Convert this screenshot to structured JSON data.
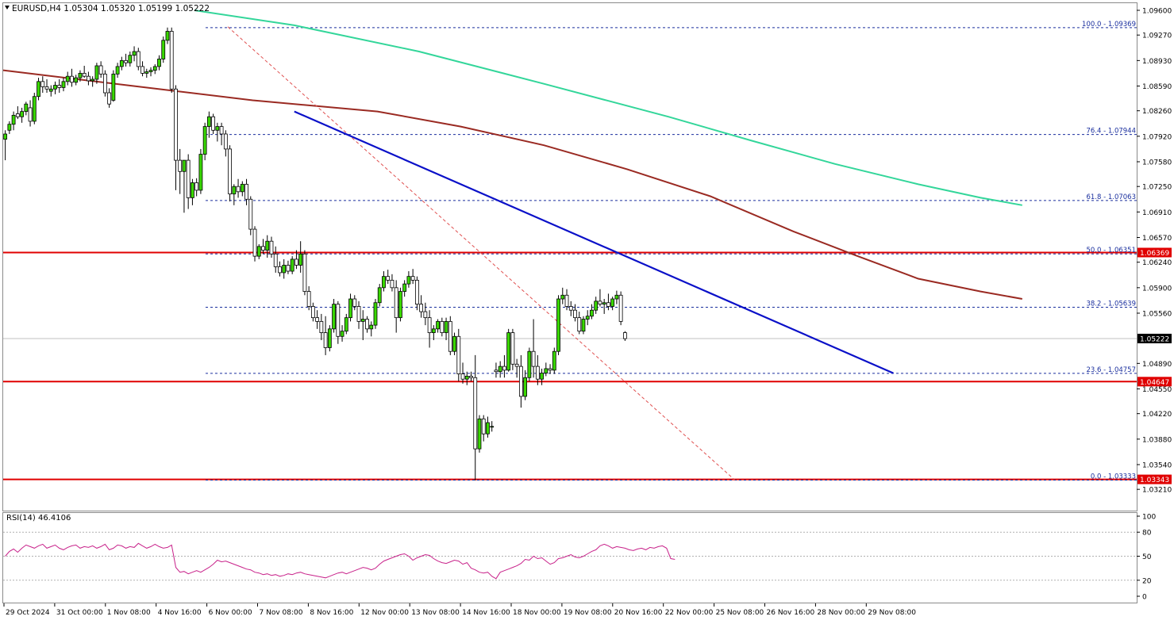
{
  "chart_data": {
    "type": "candlestick",
    "symbol": "EURUSD",
    "timeframe": "H4",
    "header_text": "EURUSD,H4  1.05304 1.05320 1.05199 1.05222",
    "ohlc": {
      "open": "1.05304",
      "high": "1.05320",
      "low": "1.05199",
      "close": "1.05222"
    },
    "price_axis_ticks": [
      "1.09600",
      "1.09270",
      "1.08930",
      "1.08590",
      "1.08260",
      "1.07920",
      "1.07580",
      "1.07250",
      "1.06910",
      "1.06570",
      "1.06240",
      "1.05900",
      "1.05560",
      "1.04890",
      "1.04550",
      "1.04220",
      "1.03880",
      "1.03540",
      "1.03210"
    ],
    "ylim": [
      1.0321,
      1.096
    ],
    "time_axis_labels": [
      "29 Oct 2024",
      "31 Oct 00:00",
      "1 Nov 08:00",
      "4 Nov 16:00",
      "6 Nov 00:00",
      "7 Nov 08:00",
      "8 Nov 16:00",
      "12 Nov 00:00",
      "13 Nov 08:00",
      "14 Nov 16:00",
      "18 Nov 00:00",
      "19 Nov 08:00",
      "20 Nov 16:00",
      "22 Nov 00:00",
      "25 Nov 08:00",
      "26 Nov 16:00",
      "28 Nov 00:00",
      "29 Nov 08:00"
    ],
    "current_price": {
      "value": 1.05222,
      "label": "1.05222"
    },
    "horizontal_levels": [
      {
        "value": 1.06369,
        "label": "1.06369",
        "color": "#e00000"
      },
      {
        "value": 1.04647,
        "label": "1.04647",
        "color": "#e00000"
      },
      {
        "value": 1.03343,
        "label": "1.03343",
        "color": "#e00000"
      }
    ],
    "fibonacci": {
      "color": "#1a2f9e",
      "levels": [
        {
          "value": 1.09369,
          "label": "100.0 - 1.09369"
        },
        {
          "value": 1.07944,
          "label": "76.4 - 1.07944"
        },
        {
          "value": 1.07063,
          "label": "61.8 - 1.07063"
        },
        {
          "value": 1.06351,
          "label": "50.0 - 1.06351"
        },
        {
          "value": 1.05639,
          "label": "38.2 - 1.05639"
        },
        {
          "value": 1.04757,
          "label": "23.6 - 1.04757"
        },
        {
          "value": 1.03333,
          "label": "0.0 - 1.03333"
        }
      ]
    },
    "trendline": {
      "color": "#0a10c8",
      "from": {
        "bar": 70,
        "price": 1.0825
      },
      "to": {
        "bar": 214,
        "price": 1.0476
      }
    },
    "fib_swing": {
      "color": "#e05050",
      "from": {
        "bar": 54,
        "price": 1.0938
      },
      "to": {
        "bar": 176,
        "price": 1.0333
      }
    },
    "moving_averages": [
      {
        "color": "#9a2a22",
        "points": [
          [
            0,
            1.088
          ],
          [
            30,
            1.086
          ],
          [
            60,
            1.084
          ],
          [
            90,
            1.0825
          ],
          [
            110,
            1.0805
          ],
          [
            130,
            1.078
          ],
          [
            150,
            1.0748
          ],
          [
            170,
            1.0712
          ],
          [
            190,
            1.0665
          ],
          [
            205,
            1.0633
          ],
          [
            220,
            1.0602
          ],
          [
            235,
            1.0585
          ],
          [
            245,
            1.0575
          ]
        ]
      },
      {
        "color": "#33d69a",
        "points": [
          [
            46,
            1.096
          ],
          [
            70,
            1.094
          ],
          [
            100,
            1.0905
          ],
          [
            130,
            1.0862
          ],
          [
            160,
            1.0818
          ],
          [
            180,
            1.0786
          ],
          [
            200,
            1.0755
          ],
          [
            220,
            1.0728
          ],
          [
            235,
            1.071
          ],
          [
            245,
            1.07
          ]
        ]
      }
    ],
    "candles": [
      [
        1.0788,
        1.08,
        1.076,
        1.0795
      ],
      [
        1.08,
        1.0812,
        1.0795,
        1.0808
      ],
      [
        1.0808,
        1.0825,
        1.08,
        1.082
      ],
      [
        1.0822,
        1.0832,
        1.0815,
        1.0818
      ],
      [
        1.0818,
        1.083,
        1.081,
        1.0825
      ],
      [
        1.0825,
        1.0838,
        1.082,
        1.0835
      ],
      [
        1.083,
        1.084,
        1.0805,
        1.0812
      ],
      [
        1.0812,
        1.085,
        1.0808,
        1.0845
      ],
      [
        1.0845,
        1.087,
        1.084,
        1.0865
      ],
      [
        1.0865,
        1.0872,
        1.085,
        1.0858
      ],
      [
        1.0858,
        1.0868,
        1.085,
        1.0855
      ],
      [
        1.0852,
        1.086,
        1.0845,
        1.0855
      ],
      [
        1.0855,
        1.0865,
        1.0848,
        1.086
      ],
      [
        1.086,
        1.0868,
        1.085,
        1.0857
      ],
      [
        1.0857,
        1.087,
        1.0852,
        1.0865
      ],
      [
        1.0865,
        1.0878,
        1.086,
        1.0872
      ],
      [
        1.0872,
        1.0882,
        1.0858,
        1.0864
      ],
      [
        1.0864,
        1.0874,
        1.086,
        1.087
      ],
      [
        1.087,
        1.088,
        1.0865,
        1.0876
      ],
      [
        1.0876,
        1.0886,
        1.087,
        1.0872
      ],
      [
        1.0872,
        1.0878,
        1.086,
        1.0866
      ],
      [
        1.0866,
        1.0872,
        1.0858,
        1.0868
      ],
      [
        1.0868,
        1.089,
        1.0862,
        1.0886
      ],
      [
        1.0886,
        1.0892,
        1.087,
        1.0875
      ],
      [
        1.0875,
        1.088,
        1.0845,
        1.085
      ],
      [
        1.085,
        1.0856,
        1.083,
        1.0835
      ],
      [
        1.084,
        1.088,
        1.0838,
        1.0875
      ],
      [
        1.0875,
        1.089,
        1.087,
        1.0885
      ],
      [
        1.0885,
        1.0898,
        1.088,
        1.0893
      ],
      [
        1.0893,
        1.0902,
        1.0885,
        1.089
      ],
      [
        1.089,
        1.0905,
        1.0885,
        1.09
      ],
      [
        1.09,
        1.0912,
        1.0892,
        1.0905
      ],
      [
        1.0905,
        1.091,
        1.088,
        1.0885
      ],
      [
        1.0885,
        1.0892,
        1.0872,
        1.0876
      ],
      [
        1.0876,
        1.0882,
        1.087,
        1.0878
      ],
      [
        1.0878,
        1.0884,
        1.0872,
        1.088
      ],
      [
        1.088,
        1.0888,
        1.0875,
        1.0885
      ],
      [
        1.0885,
        1.09,
        1.088,
        1.0895
      ],
      [
        1.0895,
        1.0925,
        1.089,
        1.092
      ],
      [
        1.092,
        1.0937,
        1.0915,
        1.0932
      ],
      [
        1.0932,
        1.0937,
        1.085,
        1.0855
      ],
      [
        1.0855,
        1.086,
        1.072,
        1.076
      ],
      [
        1.076,
        1.0775,
        1.0715,
        1.0745
      ],
      [
        1.0745,
        1.076,
        1.069,
        1.076
      ],
      [
        1.076,
        1.0768,
        1.0695,
        1.071
      ],
      [
        1.071,
        1.0735,
        1.07,
        1.073
      ],
      [
        1.073,
        1.0736,
        1.0712,
        1.072
      ],
      [
        1.072,
        1.0775,
        1.0715,
        1.0768
      ],
      [
        1.0768,
        1.081,
        1.076,
        1.0805
      ],
      [
        1.0805,
        1.0825,
        1.079,
        1.0818
      ],
      [
        1.0818,
        1.0822,
        1.0795,
        1.08
      ],
      [
        1.08,
        1.081,
        1.0785,
        1.0805
      ],
      [
        1.0805,
        1.081,
        1.078,
        1.0795
      ],
      [
        1.0795,
        1.08,
        1.0765,
        1.0775
      ],
      [
        1.0775,
        1.078,
        1.0705,
        1.0715
      ],
      [
        1.0715,
        1.0728,
        1.07,
        1.0725
      ],
      [
        1.0725,
        1.0735,
        1.071,
        1.0718
      ],
      [
        1.0718,
        1.0732,
        1.0712,
        1.0728
      ],
      [
        1.0728,
        1.0735,
        1.07,
        1.0708
      ],
      [
        1.0708,
        1.0712,
        1.066,
        1.0668
      ],
      [
        1.0668,
        1.0672,
        1.0625,
        1.0632
      ],
      [
        1.0632,
        1.0648,
        1.0628,
        1.0645
      ],
      [
        1.0645,
        1.0655,
        1.0635,
        1.064
      ],
      [
        1.064,
        1.066,
        1.063,
        1.0652
      ],
      [
        1.0652,
        1.0658,
        1.063,
        1.0635
      ],
      [
        1.0635,
        1.0645,
        1.061,
        1.0618
      ],
      [
        1.0618,
        1.0625,
        1.0605,
        1.061
      ],
      [
        1.061,
        1.0628,
        1.0602,
        1.062
      ],
      [
        1.062,
        1.0626,
        1.0608,
        1.0612
      ],
      [
        1.0612,
        1.0632,
        1.0608,
        1.0628
      ],
      [
        1.0628,
        1.064,
        1.0615,
        1.062
      ],
      [
        1.062,
        1.0652,
        1.061,
        1.0635
      ],
      [
        1.0635,
        1.064,
        1.058,
        1.0585
      ],
      [
        1.0585,
        1.0592,
        1.056,
        1.0565
      ],
      [
        1.0565,
        1.057,
        1.0545,
        1.055
      ],
      [
        1.055,
        1.056,
        1.0535,
        1.0545
      ],
      [
        1.0545,
        1.0555,
        1.052,
        1.053
      ],
      [
        1.053,
        1.0552,
        1.05,
        1.051
      ],
      [
        1.051,
        1.054,
        1.0505,
        1.0535
      ],
      [
        1.0535,
        1.0575,
        1.053,
        1.0568
      ],
      [
        1.0568,
        1.0572,
        1.0515,
        1.0525
      ],
      [
        1.0525,
        1.054,
        1.0518,
        1.0532
      ],
      [
        1.0532,
        1.0555,
        1.0528,
        1.055
      ],
      [
        1.055,
        1.0582,
        1.0545,
        1.0575
      ],
      [
        1.0575,
        1.058,
        1.056,
        1.0565
      ],
      [
        1.0565,
        1.0572,
        1.0535,
        1.0545
      ],
      [
        1.0545,
        1.056,
        1.052,
        1.0548
      ],
      [
        1.0548,
        1.0552,
        1.053,
        1.0535
      ],
      [
        1.0535,
        1.0545,
        1.0525,
        1.054
      ],
      [
        1.054,
        1.0575,
        1.0535,
        1.057
      ],
      [
        1.057,
        1.0595,
        1.0565,
        1.059
      ],
      [
        1.059,
        1.0612,
        1.0585,
        1.0605
      ],
      [
        1.0605,
        1.0614,
        1.0595,
        1.06
      ],
      [
        1.06,
        1.0608,
        1.0585,
        1.059
      ],
      [
        1.059,
        1.06,
        1.053,
        1.055
      ],
      [
        1.055,
        1.059,
        1.0545,
        1.0585
      ],
      [
        1.0585,
        1.06,
        1.0578,
        1.0595
      ],
      [
        1.0595,
        1.0612,
        1.059,
        1.0605
      ],
      [
        1.0605,
        1.0615,
        1.0595,
        1.06
      ],
      [
        1.06,
        1.0605,
        1.056,
        1.0568
      ],
      [
        1.0568,
        1.058,
        1.055,
        1.0558
      ],
      [
        1.0558,
        1.057,
        1.054,
        1.055
      ],
      [
        1.055,
        1.056,
        1.051,
        1.053
      ],
      [
        1.053,
        1.054,
        1.052,
        1.0535
      ],
      [
        1.0535,
        1.0548,
        1.053,
        1.0545
      ],
      [
        1.0545,
        1.055,
        1.0525,
        1.053
      ],
      [
        1.053,
        1.055,
        1.052,
        1.0545
      ],
      [
        1.0545,
        1.0552,
        1.05,
        1.0505
      ],
      [
        1.0505,
        1.053,
        1.05,
        1.0525
      ],
      [
        1.0525,
        1.0535,
        1.0465,
        1.0475
      ],
      [
        1.0475,
        1.049,
        1.0462,
        1.0468
      ],
      [
        1.0468,
        1.0478,
        1.046,
        1.0472
      ],
      [
        1.0472,
        1.0478,
        1.0465,
        1.047
      ],
      [
        1.047,
        1.05,
        1.0333,
        1.0375
      ],
      [
        1.0375,
        1.042,
        1.037,
        1.0415
      ],
      [
        1.0415,
        1.042,
        1.0385,
        1.0395
      ],
      [
        1.0395,
        1.0418,
        1.039,
        1.041
      ],
      [
        1.0405,
        1.0412,
        1.0398,
        1.0405
      ],
      [
        1.048,
        1.049,
        1.047,
        1.0478
      ],
      [
        1.0478,
        1.0492,
        1.047,
        1.0485
      ],
      [
        1.0485,
        1.05,
        1.047,
        1.048
      ],
      [
        1.048,
        1.0535,
        1.0478,
        1.053
      ],
      [
        1.053,
        1.0535,
        1.048,
        1.0488
      ],
      [
        1.0488,
        1.0495,
        1.047,
        1.0485
      ],
      [
        1.0485,
        1.05,
        1.043,
        1.0445
      ],
      [
        1.0445,
        1.048,
        1.044,
        1.047
      ],
      [
        1.047,
        1.051,
        1.0465,
        1.0505
      ],
      [
        1.0505,
        1.0548,
        1.047,
        1.0485
      ],
      [
        1.0485,
        1.05,
        1.046,
        1.0468
      ],
      [
        1.0468,
        1.0482,
        1.046,
        1.0476
      ],
      [
        1.0476,
        1.049,
        1.0472,
        1.0482
      ],
      [
        1.0482,
        1.0488,
        1.0475,
        1.048
      ],
      [
        1.048,
        1.051,
        1.0475,
        1.0505
      ],
      [
        1.0505,
        1.058,
        1.05,
        1.0575
      ],
      [
        1.0575,
        1.059,
        1.0568,
        1.058
      ],
      [
        1.058,
        1.0588,
        1.056,
        1.0565
      ],
      [
        1.0565,
        1.0572,
        1.0552,
        1.056
      ],
      [
        1.056,
        1.0568,
        1.0545,
        1.055
      ],
      [
        1.055,
        1.0558,
        1.0528,
        1.0532
      ],
      [
        1.0532,
        1.0552,
        1.0528,
        1.0548
      ],
      [
        1.0548,
        1.056,
        1.054,
        1.0552
      ],
      [
        1.0552,
        1.0568,
        1.0548,
        1.056
      ],
      [
        1.056,
        1.0578,
        1.0555,
        1.0572
      ],
      [
        1.0572,
        1.0588,
        1.0565,
        1.0568
      ],
      [
        1.0568,
        1.0575,
        1.0555,
        1.057
      ],
      [
        1.057,
        1.0582,
        1.056,
        1.0565
      ],
      [
        1.0565,
        1.0578,
        1.056,
        1.0575
      ],
      [
        1.0575,
        1.0586,
        1.0568,
        1.058
      ],
      [
        1.058,
        1.0585,
        1.054,
        1.0545
      ],
      [
        1.053,
        1.0532,
        1.0519,
        1.0522
      ]
    ],
    "indicator": {
      "name": "RSI(14)",
      "label": "RSI(14) 46.4106",
      "value": 46.4106,
      "color": "#c8228a",
      "levels": [
        "100",
        "80",
        "50",
        "20",
        "0"
      ],
      "level_values": [
        100,
        80,
        50,
        20,
        0
      ],
      "dotted_levels": [
        80,
        50,
        20
      ],
      "series": [
        50,
        56,
        59,
        55,
        60,
        64,
        62,
        60,
        63,
        65,
        60,
        62,
        64,
        60,
        58,
        61,
        63,
        64,
        60,
        62,
        61,
        63,
        60,
        62,
        65,
        58,
        60,
        64,
        63,
        60,
        62,
        61,
        66,
        63,
        60,
        62,
        65,
        62,
        60,
        61,
        64,
        36,
        30,
        31,
        28,
        30,
        32,
        30,
        33,
        36,
        40,
        45,
        43,
        44,
        42,
        40,
        38,
        36,
        34,
        33,
        30,
        29,
        27,
        28,
        26,
        27,
        25,
        26,
        28,
        27,
        29,
        30,
        28,
        27,
        26,
        25,
        24,
        23,
        25,
        27,
        29,
        30,
        28,
        30,
        32,
        34,
        36,
        35,
        33,
        35,
        40,
        44,
        46,
        48,
        50,
        52,
        53,
        50,
        45,
        48,
        50,
        52,
        51,
        47,
        44,
        42,
        41,
        43,
        45,
        44,
        40,
        42,
        35,
        33,
        30,
        29,
        30,
        25,
        22,
        30,
        32,
        34,
        36,
        38,
        41,
        46,
        45,
        50,
        47,
        48,
        44,
        40,
        42,
        47,
        48,
        50,
        52,
        49,
        48,
        50,
        53,
        56,
        58,
        63,
        65,
        63,
        60,
        62,
        61,
        60,
        58,
        57,
        59,
        60,
        58,
        61,
        60,
        62,
        63,
        60,
        47,
        46
      ]
    }
  }
}
